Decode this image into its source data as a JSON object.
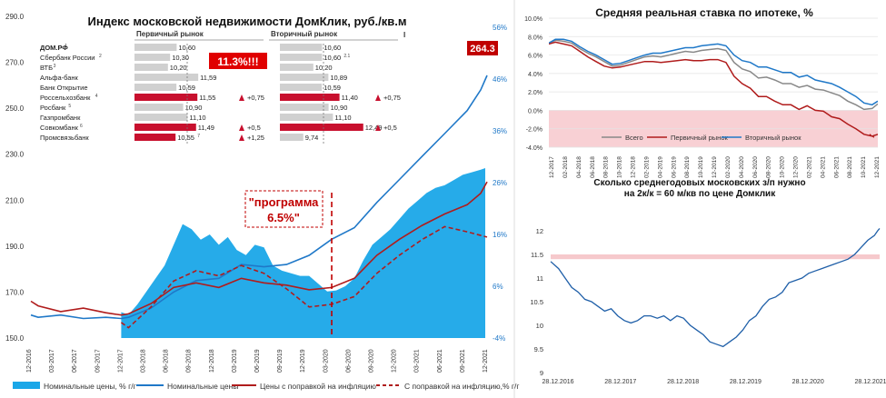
{
  "chart_data": [
    {
      "id": "main",
      "type": "area+line",
      "title": "Индекс московской недвижимости ДомКлик, руб./кв.м",
      "y_left": {
        "ticks": [
          150.0,
          170.0,
          190.0,
          210.0,
          230.0,
          250.0,
          270.0,
          290.0
        ],
        "range": [
          150,
          290
        ]
      },
      "y_right": {
        "ticks": [
          "-4%",
          "6%",
          "16%",
          "26%",
          "36%",
          "46%",
          "56%"
        ],
        "range": [
          -4,
          56
        ]
      },
      "x_ticks": [
        "12-2016",
        "03-2017",
        "06-2017",
        "09-2017",
        "12-2017",
        "03-2018",
        "06-2018",
        "09-2018",
        "12-2018",
        "03-2019",
        "06-2019",
        "09-2019",
        "12-2019",
        "03-2020",
        "06-2020",
        "09-2020",
        "12-2020",
        "03-2021",
        "06-2021",
        "09-2021",
        "12-2021"
      ],
      "x_range": [
        2016.92,
        2021.97
      ],
      "area_series": {
        "name": "Номинальные цены, % г/г",
        "x": [
          2017.92,
          2018.0,
          2018.1,
          2018.2,
          2018.3,
          2018.4,
          2018.5,
          2018.6,
          2018.7,
          2018.8,
          2018.9,
          2019.0,
          2019.1,
          2019.2,
          2019.3,
          2019.4,
          2019.5,
          2019.6,
          2019.7,
          2019.8,
          2019.9,
          2020.0,
          2020.1,
          2020.2,
          2020.3,
          2020.4,
          2020.5,
          2020.6,
          2020.7,
          2020.8,
          2020.9,
          2021.0,
          2021.1,
          2021.2,
          2021.3,
          2021.4,
          2021.5,
          2021.6,
          2021.7,
          2021.8,
          2021.9,
          2021.95
        ],
        "y": [
          1.0,
          0.5,
          2.5,
          5.0,
          7.5,
          10.0,
          14.0,
          18.0,
          17.0,
          15.0,
          16.0,
          14.0,
          15.5,
          13.0,
          12.0,
          14.0,
          13.5,
          10.0,
          9.0,
          8.5,
          8.0,
          8.0,
          6.5,
          5.0,
          5.2,
          6.0,
          7.5,
          11.0,
          14.0,
          15.5,
          17.0,
          19.0,
          21.0,
          22.5,
          24.0,
          25.0,
          25.5,
          26.5,
          27.5,
          28.0,
          28.5,
          28.8
        ]
      },
      "series": [
        {
          "name": "Номинальные цены",
          "axis": "left",
          "x": [
            2016.92,
            2017.0,
            2017.25,
            2017.5,
            2017.75,
            2017.92,
            2018.0,
            2018.25,
            2018.5,
            2018.75,
            2019.0,
            2019.25,
            2019.5,
            2019.75,
            2020.0,
            2020.25,
            2020.5,
            2020.75,
            2021.0,
            2021.25,
            2021.5,
            2021.75,
            2021.9,
            2021.97
          ],
          "y": [
            160.0,
            159.0,
            160.0,
            158.5,
            159.0,
            158.5,
            159.0,
            163.0,
            170.0,
            175.0,
            176.0,
            182.0,
            181.0,
            182.0,
            186.0,
            193.0,
            198.0,
            209.0,
            219.0,
            229.0,
            239.0,
            249.0,
            258.0,
            264.3
          ]
        },
        {
          "name": "Цены с поправкой на инфляцию",
          "axis": "left",
          "x": [
            2016.92,
            2017.0,
            2017.25,
            2017.5,
            2017.75,
            2017.92,
            2018.0,
            2018.25,
            2018.5,
            2018.75,
            2019.0,
            2019.25,
            2019.5,
            2019.75,
            2020.0,
            2020.25,
            2020.5,
            2020.75,
            2021.0,
            2021.25,
            2021.5,
            2021.75,
            2021.9,
            2021.97
          ],
          "y": [
            166.0,
            164.0,
            161.5,
            163.0,
            161.0,
            160.0,
            160.5,
            165.0,
            172.0,
            174.0,
            172.0,
            176.0,
            174.0,
            173.0,
            171.0,
            172.0,
            176.0,
            186.0,
            193.0,
            199.0,
            204.0,
            208.0,
            213.0,
            218.0
          ]
        },
        {
          "name": "С поправкой на инфляцию,% г/г",
          "axis": "right",
          "dash": true,
          "x": [
            2017.92,
            2018.0,
            2018.25,
            2018.5,
            2018.75,
            2019.0,
            2019.25,
            2019.5,
            2019.75,
            2020.0,
            2020.25,
            2020.5,
            2020.75,
            2021.0,
            2021.25,
            2021.5,
            2021.75,
            2021.97
          ],
          "y": [
            -1.0,
            -2.0,
            2.0,
            7.0,
            9.0,
            8.0,
            10.0,
            8.5,
            5.5,
            2.0,
            2.5,
            4.0,
            8.5,
            12.0,
            15.0,
            17.5,
            16.5,
            15.5
          ]
        }
      ],
      "legend": [
        "Номинальные цены, % г/г",
        "Номинальные цены",
        "Цены с поправкой на инфляцию",
        "С поправкой на инфляцию,% г/г"
      ],
      "annotations": {
        "last_value": "264.3",
        "callout_11": "11.3%!!!",
        "program_line1": "\"программа",
        "program_line2": "6.5%\"",
        "program_x": 2020.25
      },
      "inset_table": {
        "col1": "Первичный рынок",
        "col2": "Вторичный рынок",
        "col3_mark": "I",
        "rows": [
          {
            "bank": "ДОМ.РФ",
            "sup": "1",
            "p": "10,60",
            "psup": "",
            "s": "10,60",
            "ssup": "",
            "pd": "",
            "sd": "",
            "hp": false,
            "hs": false
          },
          {
            "bank": "Сбербанк России",
            "sup": "2",
            "p": "10,30",
            "psup": "",
            "s": "10,60",
            "ssup": "2.1",
            "pd": "",
            "sd": "",
            "hp": false,
            "hs": false
          },
          {
            "bank": "ВТБ",
            "sup": "3",
            "p": "10,20",
            "psup": "",
            "s": "10,20",
            "ssup": "",
            "pd": "",
            "sd": "",
            "hp": false,
            "hs": false
          },
          {
            "bank": "Альфа-банк",
            "sup": "",
            "p": "11,59",
            "psup": "",
            "s": "10,89",
            "ssup": "",
            "pd": "",
            "sd": "",
            "hp": false,
            "hs": false
          },
          {
            "bank": "Банк Открытие",
            "sup": "",
            "p": "10,59",
            "psup": "",
            "s": "10,59",
            "ssup": "",
            "pd": "",
            "sd": "",
            "hp": false,
            "hs": false
          },
          {
            "bank": "Россельхозбанк",
            "sup": "4",
            "p": "11,55",
            "psup": "",
            "s": "11,40",
            "ssup": "",
            "pd": "+0,75",
            "sd": "+0,75",
            "hp": true,
            "hs": true
          },
          {
            "bank": "Росбанк",
            "sup": "5",
            "p": "10,90",
            "psup": "",
            "s": "10,90",
            "ssup": "",
            "pd": "",
            "sd": "",
            "hp": false,
            "hs": false
          },
          {
            "bank": "Газпромбанк",
            "sup": "",
            "p": "11,10",
            "psup": "",
            "s": "11,10",
            "ssup": "",
            "pd": "",
            "sd": "",
            "hp": false,
            "hs": false
          },
          {
            "bank": "Совкомбанк",
            "sup": "6",
            "p": "11,49",
            "psup": "",
            "s": "12,49",
            "ssup": "",
            "pd": "+0,5",
            "sd": "+0,5",
            "hp": true,
            "hs": true
          },
          {
            "bank": "Промсвязьбанк",
            "sup": "",
            "p": "10,55",
            "psup": "7",
            "s": "9,74",
            "ssup": "",
            "pd": "+1,25",
            "sd": "",
            "hp": true,
            "hs": false
          }
        ]
      }
    },
    {
      "id": "rate",
      "type": "line",
      "title": "Средняя реальная ставка по ипотеке, %",
      "y_ticks": [
        "10.0%",
        "8.0%",
        "6.0%",
        "4.0%",
        "2.0%",
        "0.0%",
        "-2.0%",
        "-4.0%"
      ],
      "y_range": [
        -4,
        10
      ],
      "x_ticks": [
        "12-2017",
        "02-2018",
        "04-2018",
        "06-2018",
        "08-2018",
        "10-2018",
        "12-2018",
        "02-2019",
        "04-2019",
        "06-2019",
        "08-2019",
        "10-2019",
        "12-2019",
        "02-2020",
        "04-2020",
        "06-2020",
        "08-2020",
        "10-2020",
        "12-2020",
        "02-2021",
        "04-2021",
        "06-2021",
        "08-2021",
        "10-2021",
        "12-2021"
      ],
      "x_range": [
        2017.92,
        2021.97
      ],
      "shaded_below_zero": true,
      "series": [
        {
          "name": "Всего",
          "x": [
            2017.92,
            2018.0,
            2018.1,
            2018.2,
            2018.3,
            2018.4,
            2018.5,
            2018.6,
            2018.7,
            2018.8,
            2018.9,
            2019.0,
            2019.1,
            2019.2,
            2019.3,
            2019.4,
            2019.5,
            2019.6,
            2019.7,
            2019.8,
            2019.9,
            2020.0,
            2020.1,
            2020.2,
            2020.3,
            2020.4,
            2020.5,
            2020.6,
            2020.7,
            2020.8,
            2020.9,
            2021.0,
            2021.1,
            2021.2,
            2021.3,
            2021.4,
            2021.5,
            2021.6,
            2021.7,
            2021.8,
            2021.9,
            2021.97
          ],
          "y": [
            7.3,
            7.6,
            7.5,
            7.3,
            6.7,
            6.2,
            5.8,
            5.3,
            4.8,
            4.9,
            5.2,
            5.5,
            5.8,
            5.9,
            5.8,
            6.0,
            6.2,
            6.4,
            6.3,
            6.5,
            6.6,
            6.7,
            6.5,
            5.2,
            4.5,
            4.2,
            3.5,
            3.6,
            3.3,
            2.9,
            2.9,
            2.5,
            2.7,
            2.3,
            2.2,
            1.9,
            1.6,
            1.0,
            0.6,
            0.1,
            0.2,
            0.7
          ]
        },
        {
          "name": "Первичный рынок",
          "x": [
            2017.92,
            2018.0,
            2018.1,
            2018.2,
            2018.3,
            2018.4,
            2018.5,
            2018.6,
            2018.7,
            2018.8,
            2018.9,
            2019.0,
            2019.1,
            2019.2,
            2019.3,
            2019.4,
            2019.5,
            2019.6,
            2019.7,
            2019.8,
            2019.9,
            2020.0,
            2020.1,
            2020.2,
            2020.3,
            2020.4,
            2020.5,
            2020.6,
            2020.7,
            2020.8,
            2020.9,
            2021.0,
            2021.1,
            2021.2,
            2021.3,
            2021.4,
            2021.5,
            2021.6,
            2021.7,
            2021.8,
            2021.9,
            2021.97
          ],
          "y": [
            7.2,
            7.4,
            7.2,
            7.0,
            6.4,
            5.8,
            5.3,
            4.8,
            4.6,
            4.7,
            4.9,
            5.1,
            5.3,
            5.3,
            5.2,
            5.3,
            5.4,
            5.5,
            5.4,
            5.4,
            5.5,
            5.5,
            5.2,
            3.7,
            2.9,
            2.4,
            1.5,
            1.5,
            1.0,
            0.6,
            0.6,
            0.1,
            0.5,
            0.0,
            -0.1,
            -0.7,
            -0.9,
            -1.5,
            -2.0,
            -2.6,
            -2.8,
            -2.6
          ]
        },
        {
          "name": "Вторичный рынок",
          "x": [
            2017.92,
            2018.0,
            2018.1,
            2018.2,
            2018.3,
            2018.4,
            2018.5,
            2018.6,
            2018.7,
            2018.8,
            2018.9,
            2019.0,
            2019.1,
            2019.2,
            2019.3,
            2019.4,
            2019.5,
            2019.6,
            2019.7,
            2019.8,
            2019.9,
            2020.0,
            2020.1,
            2020.2,
            2020.3,
            2020.4,
            2020.5,
            2020.6,
            2020.7,
            2020.8,
            2020.9,
            2021.0,
            2021.1,
            2021.2,
            2021.3,
            2021.4,
            2021.5,
            2021.6,
            2021.7,
            2021.8,
            2021.9,
            2021.97
          ],
          "y": [
            7.3,
            7.7,
            7.7,
            7.5,
            6.9,
            6.4,
            6.0,
            5.5,
            5.0,
            5.1,
            5.4,
            5.7,
            6.0,
            6.2,
            6.2,
            6.4,
            6.6,
            6.8,
            6.8,
            7.0,
            7.1,
            7.2,
            7.0,
            6.0,
            5.4,
            5.2,
            4.7,
            4.7,
            4.4,
            4.1,
            4.1,
            3.6,
            3.8,
            3.3,
            3.1,
            2.9,
            2.5,
            2.0,
            1.5,
            0.8,
            0.6,
            1.0
          ]
        }
      ],
      "legend": [
        "Всего",
        "Первичный рынок",
        "Вторичный рынок"
      ]
    },
    {
      "id": "salary",
      "type": "line",
      "title_line1": "Сколько среднегодовых московских з/п нужно",
      "title_line2": "на 2к/к = 60 м/кв по цене Домклик",
      "y_ticks": [
        "12",
        "11.5",
        "11",
        "10.5",
        "10",
        "9.5",
        "9"
      ],
      "y_range": [
        9,
        12.5
      ],
      "x_ticks": [
        "28.12.2016",
        "28.12.2017",
        "28.12.2018",
        "28.12.2019",
        "28.12.2020",
        "28.12.2021"
      ],
      "x_range": [
        2016.98,
        2021.98
      ],
      "band": [
        11.4,
        11.5
      ],
      "series": [
        {
          "name": "Зарплаты",
          "x": [
            2016.98,
            2017.1,
            2017.2,
            2017.3,
            2017.4,
            2017.5,
            2017.6,
            2017.7,
            2017.8,
            2017.9,
            2018.0,
            2018.1,
            2018.2,
            2018.3,
            2018.4,
            2018.5,
            2018.6,
            2018.7,
            2018.8,
            2018.9,
            2019.0,
            2019.1,
            2019.2,
            2019.3,
            2019.4,
            2019.5,
            2019.6,
            2019.7,
            2019.8,
            2019.9,
            2020.0,
            2020.1,
            2020.2,
            2020.3,
            2020.4,
            2020.5,
            2020.6,
            2020.7,
            2020.8,
            2020.9,
            2021.0,
            2021.1,
            2021.2,
            2021.3,
            2021.4,
            2021.5,
            2021.6,
            2021.7,
            2021.8,
            2021.9,
            2021.95,
            2021.98
          ],
          "y": [
            11.35,
            11.2,
            11.0,
            10.8,
            10.7,
            10.55,
            10.5,
            10.4,
            10.3,
            10.35,
            10.2,
            10.1,
            10.05,
            10.1,
            10.2,
            10.2,
            10.15,
            10.2,
            10.1,
            10.2,
            10.15,
            10.0,
            9.9,
            9.8,
            9.65,
            9.6,
            9.55,
            9.65,
            9.75,
            9.9,
            10.1,
            10.2,
            10.4,
            10.55,
            10.6,
            10.7,
            10.9,
            10.95,
            11.0,
            11.1,
            11.15,
            11.2,
            11.25,
            11.3,
            11.35,
            11.4,
            11.5,
            11.65,
            11.8,
            11.9,
            12.0,
            12.05
          ]
        }
      ]
    }
  ]
}
